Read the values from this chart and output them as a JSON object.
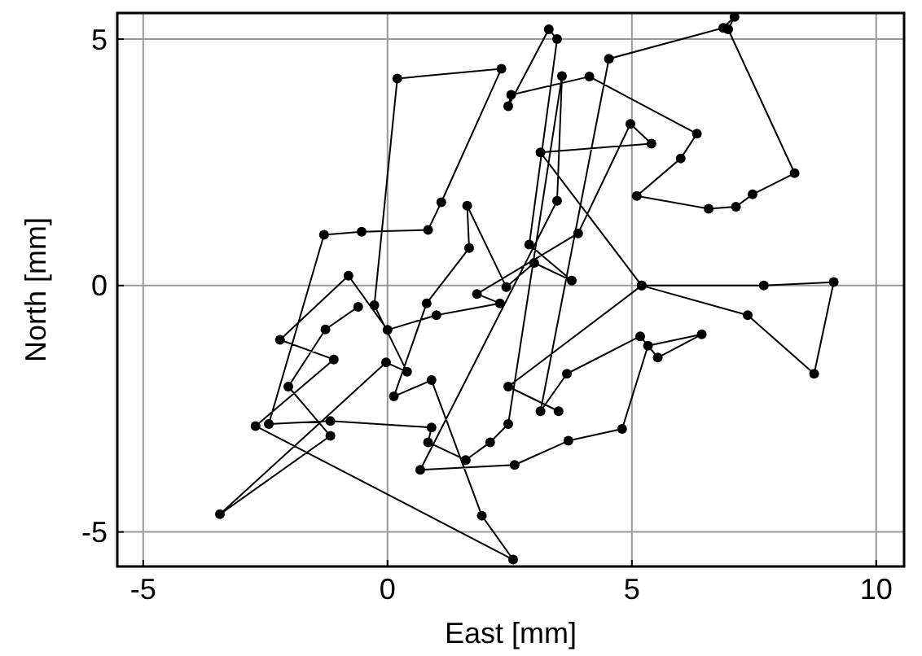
{
  "chart_data": {
    "type": "line",
    "xlabel": "East [mm]",
    "ylabel": "North [mm]",
    "xlim": [
      -5.53,
      10.57
    ],
    "ylim": [
      -5.7,
      5.53
    ],
    "xticks": [
      -5,
      0,
      5,
      10
    ],
    "yticks": [
      -5,
      0,
      5
    ],
    "grid": true,
    "marker": "circle",
    "line_style": "solid",
    "series": [
      {
        "color": "#000000",
        "x": [
          -0.6,
          -1.27,
          -2.03,
          -1.17,
          -3.43,
          -0.03,
          0.4,
          -0.27,
          0.2,
          2.33,
          1.1,
          0.83,
          -0.53,
          -1.3,
          -2.43,
          -1.17,
          0.9,
          0.83,
          1.6,
          2.1,
          2.47,
          3.57,
          3.47,
          0.67,
          2.6,
          3.7,
          4.8,
          5.33,
          6.43,
          5.53,
          5.17,
          3.67,
          3.13,
          4.53,
          6.87,
          7.1,
          6.97,
          8.33,
          7.47,
          7.13,
          6.57,
          5.1,
          6.0,
          6.33,
          4.13,
          2.53,
          2.47,
          3.3,
          3.47,
          2.9,
          3.77,
          3.0,
          2.43,
          1.63,
          1.67,
          0.8,
          0.13,
          0.9,
          1.93,
          2.57,
          -2.7,
          -1.1,
          -2.2,
          -0.8,
          0.0,
          1.0,
          2.3,
          1.83,
          3.9,
          4.97,
          5.4,
          3.13,
          5.2,
          7.7,
          9.13,
          8.73,
          7.37,
          5.2,
          2.47,
          3.5
        ],
        "values": [
          -0.43,
          -0.89,
          -2.05,
          -3.05,
          -4.64,
          -1.56,
          -1.75,
          -0.4,
          4.2,
          4.4,
          1.69,
          1.13,
          1.09,
          1.03,
          -2.81,
          -2.75,
          -2.88,
          -3.18,
          -3.54,
          -3.18,
          -2.81,
          4.25,
          1.72,
          -3.74,
          -3.64,
          -3.15,
          -2.91,
          -1.22,
          -0.99,
          -1.46,
          -1.03,
          -1.79,
          -2.55,
          4.6,
          5.23,
          5.45,
          5.2,
          2.28,
          1.85,
          1.6,
          1.56,
          1.82,
          2.58,
          3.08,
          4.24,
          3.87,
          3.64,
          5.2,
          5.0,
          0.83,
          0.1,
          0.46,
          -0.03,
          1.62,
          0.76,
          -0.36,
          -2.25,
          -1.92,
          -4.67,
          -5.56,
          -2.85,
          -1.5,
          -1.1,
          0.2,
          -0.9,
          -0.6,
          -0.36,
          -0.17,
          1.06,
          3.28,
          2.88,
          2.7,
          0.0,
          0.0,
          0.07,
          -1.79,
          -0.6,
          0.0,
          -2.05,
          -2.55
        ]
      }
    ]
  }
}
